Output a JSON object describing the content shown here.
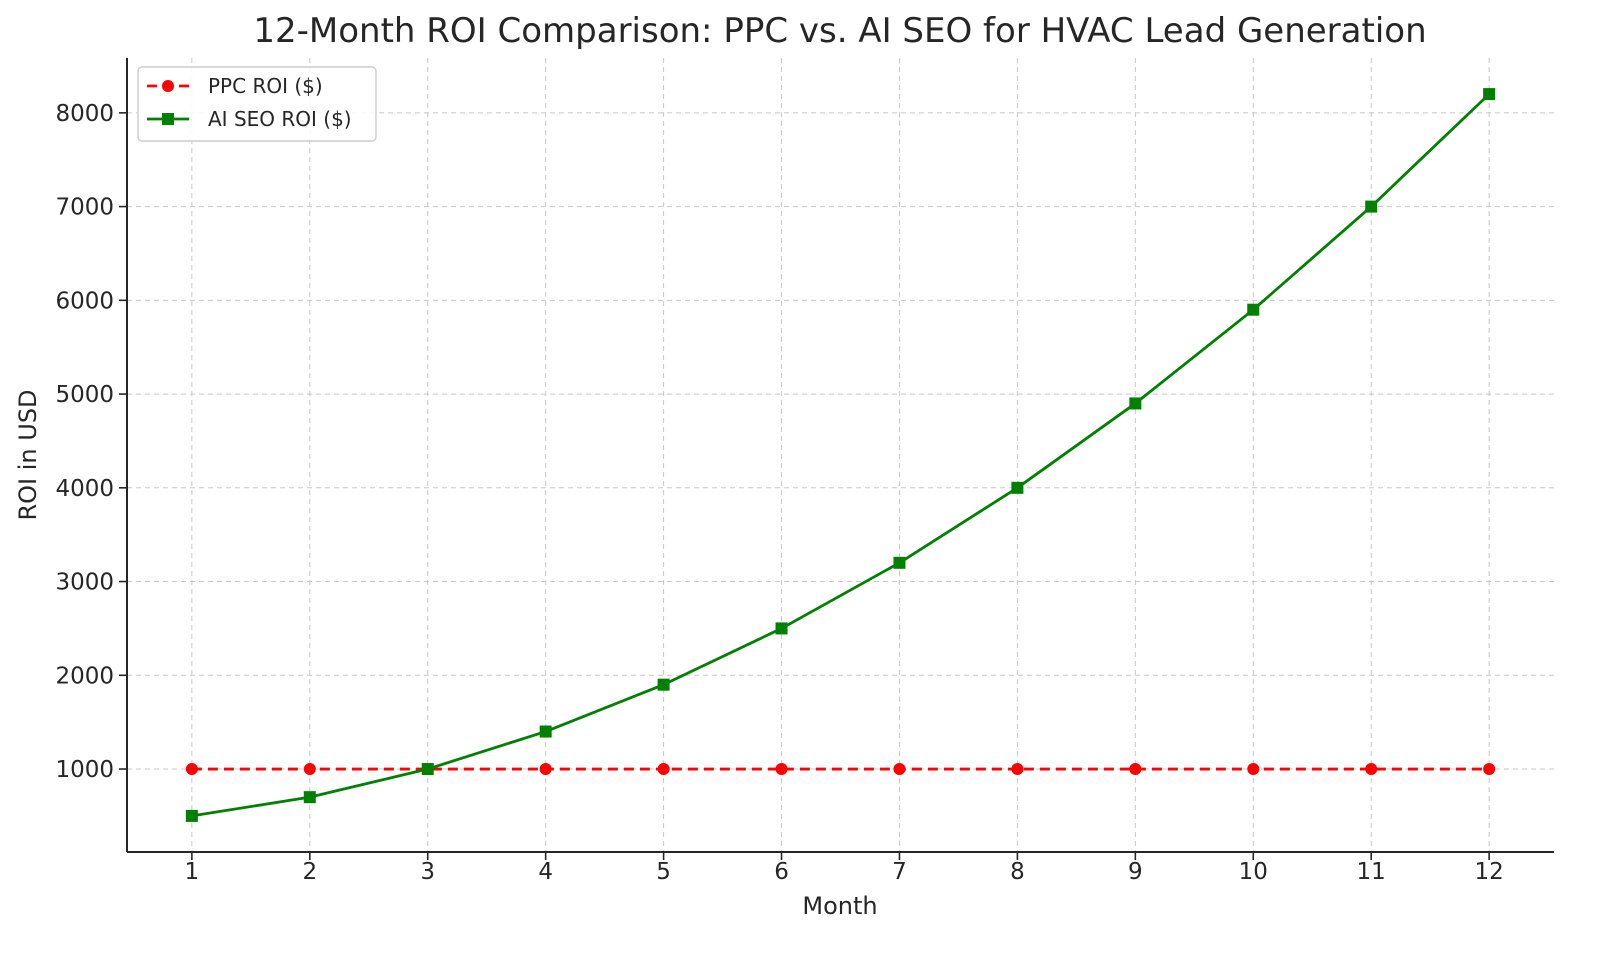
{
  "chart_data": {
    "type": "line",
    "title": "12-Month ROI Comparison: PPC vs. AI SEO for HVAC Lead Generation",
    "xlabel": "Month",
    "ylabel": "ROI in USD",
    "x": [
      1,
      2,
      3,
      4,
      5,
      6,
      7,
      8,
      9,
      10,
      11,
      12
    ],
    "xlim": [
      0.45,
      12.55
    ],
    "ylim": [
      115,
      8585
    ],
    "yticks": [
      1000,
      2000,
      3000,
      4000,
      5000,
      6000,
      7000,
      8000
    ],
    "grid": true,
    "legend_position": "top-left",
    "series": [
      {
        "name": "PPC ROI ($)",
        "values": [
          1000,
          1000,
          1000,
          1000,
          1000,
          1000,
          1000,
          1000,
          1000,
          1000,
          1000,
          1000
        ],
        "color": "#ff0000",
        "line_style": "dashed",
        "marker": "circle"
      },
      {
        "name": "AI SEO ROI ($)",
        "values": [
          500,
          700,
          1000,
          1400,
          1900,
          2500,
          3200,
          4000,
          4900,
          5900,
          7000,
          8200
        ],
        "color": "#008000",
        "line_style": "solid",
        "marker": "square"
      }
    ]
  }
}
